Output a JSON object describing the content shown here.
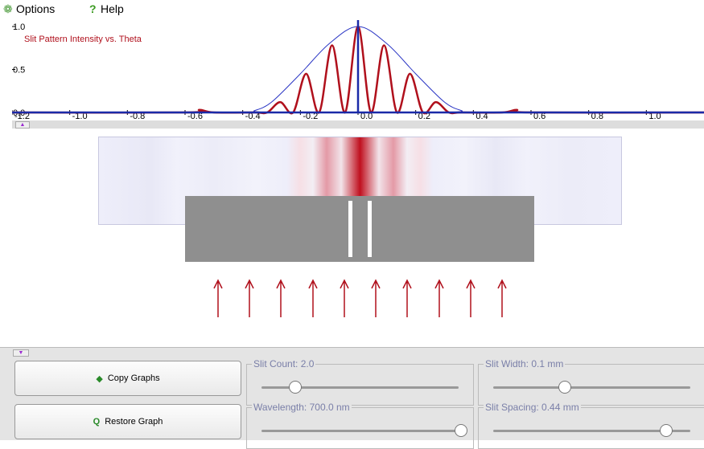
{
  "menu": {
    "items": [
      "Options",
      "Help"
    ]
  },
  "chart_data": {
    "type": "line",
    "title": "Slit Pattern Intensity vs. Theta",
    "series": [
      {
        "color": "#2a35c4",
        "x": [
          -1.2,
          -0.4,
          -0.36,
          -0.3,
          -0.2,
          -0.1,
          0,
          0.1,
          0.2,
          0.3,
          0.36,
          0.4,
          1.2
        ],
        "values": [
          0,
          0,
          0.02,
          0.12,
          0.45,
          0.8,
          1.0,
          0.8,
          0.45,
          0.12,
          0.02,
          0,
          0
        ]
      },
      {
        "color": "#b0101c",
        "x": [
          -1.2,
          -0.6,
          -0.55,
          -0.5,
          -0.36,
          -0.315,
          -0.27,
          -0.225,
          -0.18,
          -0.135,
          -0.09,
          -0.045,
          0,
          0.045,
          0.09,
          0.135,
          0.18,
          0.225,
          0.27,
          0.315,
          0.36,
          0.5,
          0.55,
          0.6,
          1.2
        ],
        "values": [
          0,
          0,
          0.03,
          0,
          0,
          0,
          0.12,
          0,
          0.45,
          0,
          0.78,
          0,
          1.0,
          0,
          0.78,
          0,
          0.45,
          0,
          0.12,
          0,
          0,
          0,
          0.03,
          0,
          0
        ]
      }
    ],
    "xlim": [
      -1.2,
      1.2
    ],
    "xticks": [
      -1.2,
      {
        "value": -1,
        "label": "-1.0"
      },
      -0.8,
      -0.6,
      -0.4,
      -0.2,
      {
        "value": 0,
        "label": "0.0"
      },
      0.2,
      0.4,
      0.6,
      0.8,
      {
        "value": 1,
        "label": "1.0"
      }
    ],
    "ylim": [
      0,
      1.0
    ],
    "yticks": [
      {
        "value": 0,
        "label": "0.0"
      },
      0.5,
      {
        "value": 1,
        "label": "1.0"
      }
    ],
    "grid": false
  },
  "controls": {
    "buttons": [
      "Copy Graphs",
      "Restore Graph"
    ],
    "sliders": [
      "Slit Count: 2.0",
      "Slit Width: 0.1 mm",
      "Wavelength: 700.0 nm",
      "Slit Spacing: 0.44 mm"
    ]
  }
}
